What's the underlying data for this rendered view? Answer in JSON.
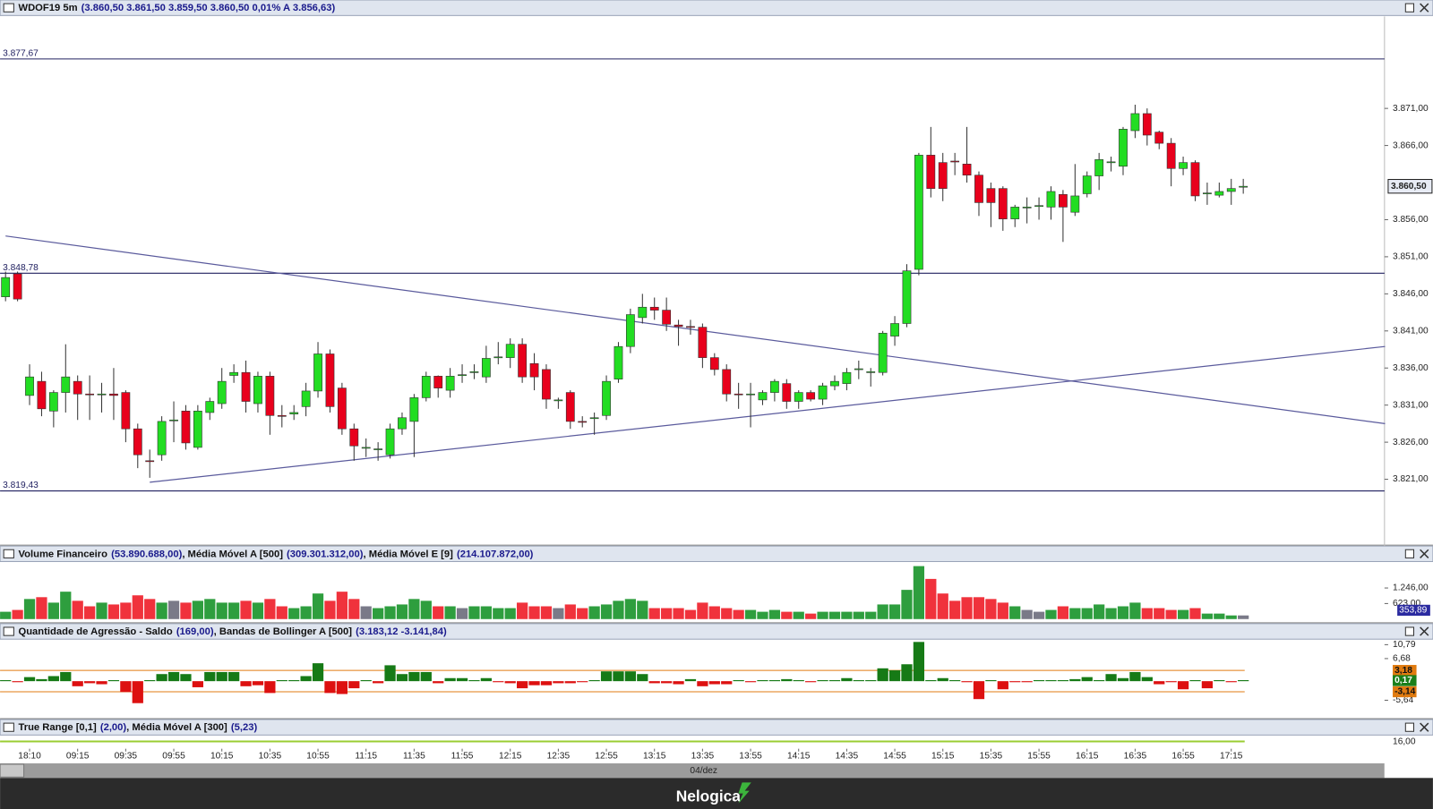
{
  "chart_data": [
    {
      "type": "candlestick",
      "title_parts": [
        "WDOF19 5m",
        "(3.860,50  3.861,50  3.859,50  3.860,50  0,01%  A 3.856,63)"
      ],
      "open": [
        3845.6,
        3848.7,
        3832.3,
        3834.2,
        3830.2,
        3832.7,
        3834.2,
        3832.5,
        3832.4,
        3832.5,
        3832.7,
        3827.8,
        3823.5,
        3824.3,
        3829,
        3830.2,
        3825.3,
        3830,
        3831.2,
        3835,
        3835.4,
        3831.2,
        3834.9,
        3829.6,
        3829.8,
        3830.8,
        3832.9,
        3837.9,
        3833.3,
        3827.8,
        3825.3,
        3825,
        3824.3,
        3827.8,
        3828.8,
        3832,
        3834.9,
        3833,
        3835.1,
        3835.4,
        3834.8,
        3837.4,
        3837.4,
        3839.2,
        3836.6,
        3835.8,
        3831.7,
        3832.7,
        3828.8,
        3829.2,
        3829.6,
        3834.5,
        3838.9,
        3842.8,
        3844.2,
        3843.8,
        3841.8,
        3841.6,
        3841.5,
        3837.4,
        3835.8,
        3832.5,
        3832.4,
        3831.7,
        3832.7,
        3833.9,
        3831.5,
        3832.7,
        3831.8,
        3833.6,
        3833.9,
        3835.8,
        3835.4,
        3835.4,
        3840.3,
        3842,
        3849.3,
        3864.7,
        3863.7,
        3863.9,
        3863.5,
        3862,
        3860.2,
        3860.2,
        3856.1,
        3857.7,
        3857.9,
        3857.7,
        3859.4,
        3857,
        3859.5,
        3861.9,
        3863.7,
        3863.2,
        3868,
        3870.3,
        3867.8,
        3866.3,
        3862.9,
        3863.7,
        3859.5,
        3859.3,
        3859.8,
        3860.5
      ],
      "high": [
        3849,
        3849,
        3836.5,
        3835.5,
        3833,
        3839.2,
        3835,
        3835,
        3834,
        3836,
        3833,
        3828.5,
        3825,
        3829.5,
        3831.5,
        3831,
        3831,
        3832,
        3836,
        3836.5,
        3837,
        3835.5,
        3835.5,
        3831,
        3831,
        3834,
        3839.5,
        3838.5,
        3834,
        3828.5,
        3826.5,
        3826,
        3828.5,
        3830,
        3832.5,
        3835.5,
        3835,
        3836,
        3836.5,
        3836.5,
        3839,
        3839.5,
        3840,
        3840,
        3838,
        3836.5,
        3832,
        3833,
        3829.5,
        3830,
        3835,
        3839.5,
        3844,
        3846,
        3845.5,
        3845.5,
        3842.5,
        3842.5,
        3842,
        3838,
        3836.5,
        3834,
        3834,
        3833,
        3834.5,
        3834.5,
        3833,
        3833,
        3834,
        3835,
        3836,
        3837,
        3836,
        3841,
        3843,
        3850,
        3865,
        3868.5,
        3865,
        3865,
        3868.5,
        3862.5,
        3861,
        3860.5,
        3858,
        3859,
        3859,
        3860.5,
        3860,
        3863.5,
        3862.5,
        3865,
        3864.5,
        3868.5,
        3871.5,
        3871,
        3868,
        3867,
        3864.5,
        3864,
        3861,
        3861,
        3861.5,
        3861.5
      ],
      "low": [
        3845,
        3845,
        3831,
        3829.5,
        3828,
        3830,
        3829,
        3829,
        3830,
        3829,
        3826,
        3822.5,
        3821.2,
        3823.5,
        3826,
        3825,
        3825,
        3829,
        3830.5,
        3834,
        3830,
        3830,
        3827,
        3828,
        3829,
        3829.5,
        3832,
        3830,
        3827,
        3823.5,
        3824,
        3823.5,
        3823.8,
        3827,
        3824,
        3831.5,
        3832,
        3832,
        3834,
        3834.5,
        3834,
        3836.5,
        3836,
        3834,
        3833,
        3830.5,
        3830.5,
        3827.8,
        3828,
        3827,
        3829,
        3834,
        3838,
        3842,
        3842.5,
        3841,
        3839,
        3840.5,
        3836,
        3835,
        3831.5,
        3830.5,
        3828,
        3831,
        3831.5,
        3830.5,
        3830.5,
        3831.5,
        3831,
        3833,
        3833,
        3834.5,
        3833.5,
        3835,
        3839,
        3841.5,
        3848.5,
        3859,
        3858.5,
        3862,
        3861,
        3856.5,
        3855,
        3854.5,
        3855,
        3855.5,
        3856,
        3856,
        3853,
        3856.5,
        3859,
        3860,
        3862.5,
        3862,
        3867,
        3866,
        3865.5,
        3860.5,
        3862,
        3858.5,
        3858,
        3859,
        3858,
        3859.5
      ],
      "close": [
        3848.2,
        3845.3,
        3834.8,
        3830.5,
        3832.7,
        3834.8,
        3832.5,
        3832.4,
        3832.5,
        3832.3,
        3827.8,
        3824.3,
        3823.4,
        3828.8,
        3829,
        3825.9,
        3830.2,
        3831.5,
        3834.2,
        3835.4,
        3831.5,
        3834.9,
        3829.6,
        3829.5,
        3830,
        3832.9,
        3837.9,
        3830.8,
        3827.8,
        3825.5,
        3825.3,
        3825.1,
        3827.8,
        3829.3,
        3832,
        3834.9,
        3833.3,
        3834.9,
        3835.1,
        3835.5,
        3837.3,
        3837.5,
        3839.2,
        3834.8,
        3834.8,
        3831.8,
        3831.7,
        3828.8,
        3828.7,
        3829.3,
        3834.2,
        3838.9,
        3843.2,
        3844.2,
        3843.8,
        3841.9,
        3841.6,
        3841.5,
        3837.4,
        3835.8,
        3832.5,
        3832.4,
        3832.5,
        3832.7,
        3834.2,
        3831.5,
        3832.7,
        3831.8,
        3833.6,
        3834.2,
        3835.4,
        3835.9,
        3835.5,
        3840.7,
        3842,
        3849.1,
        3864.7,
        3860.2,
        3860.2,
        3863.8,
        3862,
        3858.3,
        3858.3,
        3856.1,
        3857.7,
        3857.7,
        3857.9,
        3859.8,
        3857.7,
        3859.2,
        3861.9,
        3864.1,
        3863.8,
        3868.2,
        3870.3,
        3867.4,
        3866.3,
        3862.9,
        3863.7,
        3859.2,
        3859.6,
        3859.8,
        3860.2,
        3860.5
      ],
      "up_color": "#22dd22",
      "down_color": "#e8001c",
      "ylim": [
        3812,
        3883.4
      ],
      "yticks": [
        {
          "value": 3821,
          "label": "3.821,00"
        },
        {
          "value": 3826,
          "label": "3.826,00"
        },
        {
          "value": 3831,
          "label": "3.831,00"
        },
        {
          "value": 3836,
          "label": "3.836,00"
        },
        {
          "value": 3841,
          "label": "3.841,00"
        },
        {
          "value": 3846,
          "label": "3.846,00"
        },
        {
          "value": 3851,
          "label": "3.851,00"
        },
        {
          "value": 3856,
          "label": "3.856,00"
        },
        {
          "value": 3866,
          "label": "3.866,00"
        },
        {
          "value": 3871,
          "label": "3.871,00"
        }
      ],
      "hlines": [
        {
          "value": 3877.67,
          "label": "3.877,67"
        },
        {
          "value": 3848.78,
          "label": "3.848,78"
        },
        {
          "value": 3819.43,
          "label": "3.819,43"
        }
      ],
      "hline_color": "#202060",
      "last_price": {
        "value": 3860.5,
        "label": "3.860,50"
      },
      "trendlines": [
        {
          "x": [
            0,
            114.8
          ],
          "y": [
            3853.8,
            3828.5
          ]
        },
        {
          "x": [
            12,
            114.8
          ],
          "y": [
            3820.6,
            3838.9
          ]
        }
      ],
      "trendline_color": "#5a5a9c"
    },
    {
      "type": "bar",
      "title_parts": [
        "Volume Financeiro",
        "(53.890.688,00)",
        ", Média Móvel A [500]",
        "(309.301.312,00)",
        ", Média Móvel E [9]",
        "(214.107.872,00)"
      ],
      "values": [
        293,
        366,
        805,
        878,
        659,
        1098,
        732,
        512,
        659,
        586,
        659,
        952,
        805,
        659,
        732,
        659,
        732,
        805,
        659,
        659,
        732,
        659,
        805,
        512,
        439,
        512,
        1025,
        732,
        1098,
        805,
        512,
        439,
        512,
        586,
        805,
        732,
        512,
        512,
        439,
        512,
        512,
        439,
        439,
        659,
        512,
        512,
        439,
        586,
        439,
        512,
        586,
        732,
        805,
        732,
        439,
        439,
        439,
        366,
        659,
        512,
        439,
        366,
        366,
        293,
        366,
        293,
        293,
        220,
        293,
        293,
        293,
        293,
        293,
        586,
        586,
        1171,
        2123,
        1610,
        1025,
        732,
        878,
        878,
        805,
        659,
        512,
        366,
        293,
        366,
        512,
        439,
        439,
        586,
        439,
        512,
        659,
        439,
        439,
        366,
        366,
        439,
        220,
        220,
        146,
        146
      ],
      "up_color": "#2e9e3e",
      "down_color": "#f0323c",
      "neutral_color": "#7a7a88",
      "ylim": [
        0,
        2306
      ],
      "yticks": [
        {
          "value": 623,
          "label": "623,00"
        },
        {
          "value": 1246,
          "label": "1.246,00"
        }
      ],
      "last_value": {
        "value": 353.89,
        "label": "353,89"
      }
    },
    {
      "type": "bar",
      "title_parts": [
        "Quantidade de Agressão - Saldo",
        "(169,00)",
        ", Bandas de Bollinger A [500]",
        "(3.183,12  -3.141,84)"
      ],
      "values": [
        0.3,
        -0.3,
        1.2,
        0.6,
        1.5,
        2.7,
        -1.5,
        -0.6,
        -0.9,
        0.3,
        -3.2,
        -6.5,
        0.3,
        2.1,
        2.7,
        2.1,
        -1.8,
        2.7,
        2.7,
        2.7,
        -1.5,
        -1.2,
        -3.5,
        0.3,
        0.3,
        1.5,
        5.3,
        -3.5,
        -3.8,
        -2.1,
        0.3,
        -0.6,
        4.7,
        2.1,
        2.7,
        2.7,
        -0.6,
        0.9,
        0.9,
        0.3,
        0.9,
        -0.3,
        -0.6,
        -2.1,
        -1.2,
        -1.2,
        -0.6,
        -0.6,
        -0.3,
        0.3,
        2.9,
        2.9,
        2.9,
        2.1,
        -0.6,
        -0.6,
        -0.9,
        0.6,
        -1.5,
        -0.9,
        -0.9,
        0.3,
        -0.3,
        0.3,
        0.3,
        0.6,
        0.3,
        -0.3,
        0.3,
        0.3,
        0.9,
        0.3,
        0.3,
        3.8,
        3.2,
        5.0,
        11.6,
        0.3,
        0.9,
        0.3,
        -0.3,
        -5.3,
        0.3,
        -2.4,
        -0.3,
        -0.3,
        0.3,
        0.3,
        0.3,
        0.6,
        1.2,
        0.3,
        2.1,
        0.9,
        2.7,
        1.2,
        -0.9,
        -0.3,
        -2.4,
        0.3,
        -2.1,
        0.3,
        -0.3,
        0.3
      ],
      "up_color": "#167a16",
      "down_color": "#dd1010",
      "ylim": [
        -10.8,
        12.42
      ],
      "yticks": [
        {
          "value": 10.79,
          "label": "10,79"
        },
        {
          "value": 6.68,
          "label": "6,68"
        },
        {
          "value": -5.64,
          "label": "-5,64"
        }
      ],
      "bands": [
        {
          "value": 3.18,
          "label": "3,18"
        },
        {
          "value": 0.17,
          "label": "0,17"
        },
        {
          "value": -3.14,
          "label": "-3,14"
        }
      ],
      "band_colors": [
        "#e07b10",
        "#1a7f1a",
        "#e07b10"
      ]
    },
    {
      "type": "line",
      "title_parts": [
        "True Range [0,1]",
        "(2,00)",
        ", Média Móvel A [300]",
        "(5,23)"
      ],
      "yticks": [
        {
          "value": 16,
          "label": "16,00"
        }
      ],
      "categories": [
        null,
        null,
        "18:10",
        null,
        null,
        null,
        "09:15",
        null,
        null,
        null,
        "09:35",
        null,
        null,
        null,
        "09:55",
        null,
        null,
        null,
        "10:15",
        null,
        null,
        null,
        "10:35",
        null,
        null,
        null,
        "10:55",
        null,
        null,
        null,
        "11:15",
        null,
        null,
        null,
        "11:35",
        null,
        null,
        null,
        "11:55",
        null,
        null,
        null,
        "12:15",
        null,
        null,
        null,
        "12:35",
        null,
        null,
        null,
        "12:55",
        null,
        null,
        null,
        "13:15",
        null,
        null,
        null,
        "13:35",
        null,
        null,
        null,
        "13:55",
        null,
        null,
        null,
        "14:15",
        null,
        null,
        null,
        "14:35",
        null,
        null,
        null,
        "14:55",
        null,
        null,
        null,
        "15:15",
        null,
        null,
        null,
        "15:35",
        null,
        null,
        null,
        "15:55",
        null,
        null,
        null,
        "16:15",
        null,
        null,
        null,
        "16:35",
        null,
        null,
        null,
        "16:55",
        null,
        null,
        null,
        "17:15",
        null
      ],
      "xlabel": "04/dez"
    }
  ],
  "footer": {
    "brand": "Nelogica"
  }
}
